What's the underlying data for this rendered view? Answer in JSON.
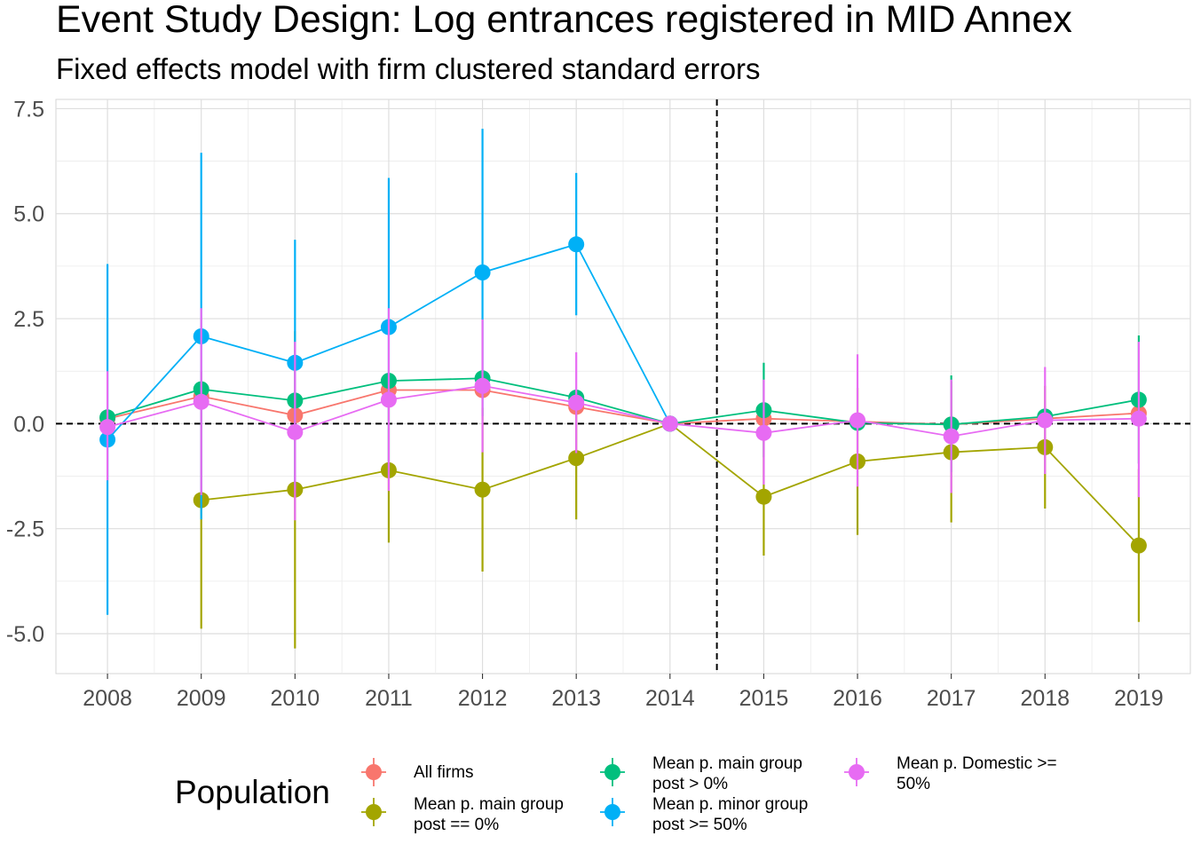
{
  "chart_data": {
    "type": "line",
    "title": "Event Study Design: Log entrances registered in MID Annex",
    "subtitle": "Fixed effects model with firm clustered standard errors",
    "xlabel": "",
    "ylabel": "",
    "x": [
      2008,
      2009,
      2010,
      2011,
      2012,
      2013,
      2014,
      2015,
      2016,
      2017,
      2018,
      2019
    ],
    "x_tick_labels": [
      "2008",
      "2009",
      "2010",
      "2011",
      "2012",
      "2013",
      "2014",
      "2015",
      "2016",
      "2017",
      "2018",
      "2019"
    ],
    "y_ticks": [
      -5.0,
      -2.5,
      0.0,
      2.5,
      5.0,
      7.5
    ],
    "y_tick_labels": [
      "-5.0",
      "-2.5",
      "0.0",
      "2.5",
      "5.0",
      "7.5"
    ],
    "xlim": [
      2007.45,
      2019.55
    ],
    "ylim": [
      -5.95,
      7.72
    ],
    "grid": true,
    "reference_lines": [
      {
        "axis": "y",
        "value": 0,
        "style": "dashed"
      },
      {
        "axis": "x",
        "value": 2014.5,
        "style": "dashed"
      }
    ],
    "legend": {
      "title": "Population",
      "position": "bottom"
    },
    "series": [
      {
        "name": "All firms",
        "legend_lines": [
          "All firms"
        ],
        "color": "#F8766D",
        "points": [
          {
            "x": 2008,
            "y": 0.12,
            "lo": null,
            "hi": null
          },
          {
            "x": 2009,
            "y": 0.65,
            "lo": null,
            "hi": null
          },
          {
            "x": 2010,
            "y": 0.2,
            "lo": null,
            "hi": null
          },
          {
            "x": 2011,
            "y": 0.8,
            "lo": null,
            "hi": null
          },
          {
            "x": 2012,
            "y": 0.8,
            "lo": null,
            "hi": null
          },
          {
            "x": 2013,
            "y": 0.4,
            "lo": null,
            "hi": null
          },
          {
            "x": 2014,
            "y": 0.0,
            "lo": null,
            "hi": null
          },
          {
            "x": 2015,
            "y": 0.12,
            "lo": null,
            "hi": null
          },
          {
            "x": 2016,
            "y": 0.05,
            "lo": null,
            "hi": null
          },
          {
            "x": 2017,
            "y": -0.02,
            "lo": null,
            "hi": null
          },
          {
            "x": 2018,
            "y": 0.12,
            "lo": null,
            "hi": null
          },
          {
            "x": 2019,
            "y": 0.25,
            "lo": null,
            "hi": null
          }
        ]
      },
      {
        "name": "Mean p. main group post == 0%",
        "legend_lines": [
          "Mean p. main group",
          "post == 0%"
        ],
        "color": "#A3A500",
        "points": [
          {
            "x": 2009,
            "y": -1.82,
            "lo": -4.88,
            "hi": 1.25
          },
          {
            "x": 2010,
            "y": -1.57,
            "lo": -5.35,
            "hi": 2.2
          },
          {
            "x": 2011,
            "y": -1.11,
            "lo": -2.83,
            "hi": 0.6
          },
          {
            "x": 2012,
            "y": -1.57,
            "lo": -3.52,
            "hi": 0.38
          },
          {
            "x": 2013,
            "y": -0.82,
            "lo": -2.28,
            "hi": 0.65
          },
          {
            "x": 2014,
            "y": 0.0,
            "lo": null,
            "hi": null
          },
          {
            "x": 2015,
            "y": -1.74,
            "lo": -3.14,
            "hi": -0.33
          },
          {
            "x": 2016,
            "y": -0.9,
            "lo": -2.65,
            "hi": 0.85
          },
          {
            "x": 2017,
            "y": -0.68,
            "lo": -2.35,
            "hi": 1.0
          },
          {
            "x": 2018,
            "y": -0.56,
            "lo": -2.02,
            "hi": 0.9
          },
          {
            "x": 2019,
            "y": -2.9,
            "lo": -4.72,
            "hi": -1.08
          }
        ]
      },
      {
        "name": "Mean p. main group post > 0%",
        "legend_lines": [
          "Mean p. main group",
          "post > 0%"
        ],
        "color": "#00BF7D",
        "points": [
          {
            "x": 2008,
            "y": 0.15,
            "lo": null,
            "hi": null
          },
          {
            "x": 2009,
            "y": 0.82,
            "lo": null,
            "hi": null
          },
          {
            "x": 2010,
            "y": 0.55,
            "lo": null,
            "hi": null
          },
          {
            "x": 2011,
            "y": 1.02,
            "lo": null,
            "hi": null
          },
          {
            "x": 2012,
            "y": 1.08,
            "lo": null,
            "hi": null
          },
          {
            "x": 2013,
            "y": 0.62,
            "lo": null,
            "hi": null
          },
          {
            "x": 2014,
            "y": 0.0,
            "lo": null,
            "hi": null
          },
          {
            "x": 2015,
            "y": 0.32,
            "lo": -0.8,
            "hi": 1.45
          },
          {
            "x": 2016,
            "y": 0.02,
            "lo": null,
            "hi": null
          },
          {
            "x": 2017,
            "y": -0.02,
            "lo": -1.15,
            "hi": 1.15
          },
          {
            "x": 2018,
            "y": 0.17,
            "lo": null,
            "hi": null
          },
          {
            "x": 2019,
            "y": 0.57,
            "lo": -0.95,
            "hi": 2.1
          }
        ]
      },
      {
        "name": "Mean p. minor group post >= 50%",
        "legend_lines": [
          "Mean p. minor group",
          "post >= 50%"
        ],
        "color": "#00B0F6",
        "points": [
          {
            "x": 2008,
            "y": -0.38,
            "lo": -4.55,
            "hi": 3.8
          },
          {
            "x": 2009,
            "y": 2.08,
            "lo": -2.28,
            "hi": 6.45
          },
          {
            "x": 2010,
            "y": 1.45,
            "lo": -1.45,
            "hi": 4.38
          },
          {
            "x": 2011,
            "y": 2.3,
            "lo": -1.25,
            "hi": 5.85
          },
          {
            "x": 2012,
            "y": 3.6,
            "lo": 0.18,
            "hi": 7.02
          },
          {
            "x": 2013,
            "y": 4.27,
            "lo": 2.58,
            "hi": 5.97
          },
          {
            "x": 2014,
            "y": 0.0,
            "lo": null,
            "hi": null
          }
        ]
      },
      {
        "name": "Mean p. Domestic >= 50%",
        "legend_lines": [
          "Mean p. Domestic >=",
          "50%"
        ],
        "color": "#E76BF3",
        "points": [
          {
            "x": 2008,
            "y": -0.08,
            "lo": -1.35,
            "hi": 1.25
          },
          {
            "x": 2009,
            "y": 0.52,
            "lo": -1.7,
            "hi": 2.75
          },
          {
            "x": 2010,
            "y": -0.2,
            "lo": -2.3,
            "hi": 1.95
          },
          {
            "x": 2011,
            "y": 0.57,
            "lo": -1.6,
            "hi": 2.75
          },
          {
            "x": 2012,
            "y": 0.9,
            "lo": -0.68,
            "hi": 2.48
          },
          {
            "x": 2013,
            "y": 0.5,
            "lo": -0.7,
            "hi": 1.7
          },
          {
            "x": 2014,
            "y": 0.0,
            "lo": null,
            "hi": null
          },
          {
            "x": 2015,
            "y": -0.22,
            "lo": -1.45,
            "hi": 1.05
          },
          {
            "x": 2016,
            "y": 0.08,
            "lo": -1.5,
            "hi": 1.65
          },
          {
            "x": 2017,
            "y": -0.3,
            "lo": -1.65,
            "hi": 1.05
          },
          {
            "x": 2018,
            "y": 0.08,
            "lo": -1.2,
            "hi": 1.35
          },
          {
            "x": 2019,
            "y": 0.12,
            "lo": -1.75,
            "hi": 1.95
          }
        ]
      }
    ]
  }
}
